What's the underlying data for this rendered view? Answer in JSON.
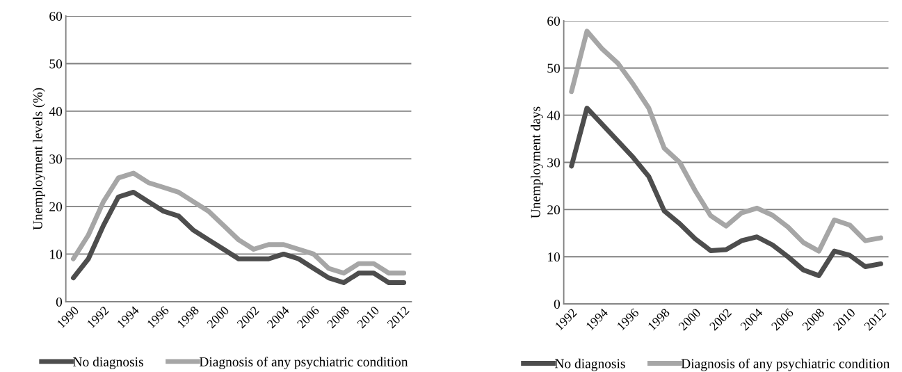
{
  "chart_data": [
    {
      "type": "line",
      "ylabel": "Unemployment levels (%)",
      "categories": [
        "1990",
        null,
        "1992",
        null,
        "1994",
        null,
        "1996",
        null,
        "1998",
        null,
        "2000",
        null,
        "2002",
        null,
        "2004",
        null,
        "2006",
        null,
        "2008",
        null,
        "2010",
        null,
        "2012"
      ],
      "series": [
        {
          "name": "No diagnosis",
          "color": "#4d4d4d",
          "values": [
            5,
            9,
            16,
            22,
            23,
            21,
            19,
            18,
            15,
            13,
            11,
            9,
            9,
            9,
            10,
            9,
            7,
            5,
            4,
            6,
            6,
            4,
            4
          ]
        },
        {
          "name": "Diagnosis of any psychiatric condition",
          "color": "#a6a6a6",
          "values": [
            9,
            14,
            21,
            26,
            27,
            25,
            24,
            23,
            21,
            19,
            16,
            13,
            11,
            12,
            12,
            11,
            10,
            7,
            6,
            8,
            8,
            6,
            6
          ]
        }
      ],
      "ylim": [
        0,
        60
      ],
      "yticks": [
        0,
        10,
        20,
        30,
        40,
        50,
        60
      ],
      "grid": "y",
      "legend": "bottom"
    },
    {
      "type": "line",
      "ylabel": "Unemployment days",
      "categories": [
        "1992",
        null,
        "1994",
        null,
        "1996",
        null,
        "1998",
        null,
        "2000",
        null,
        "2002",
        null,
        "2004",
        null,
        "2006",
        null,
        "2008",
        null,
        "2010",
        null,
        "2012"
      ],
      "series": [
        {
          "name": "No diagnosis",
          "color": "#4d4d4d",
          "values": [
            29.2,
            41.5,
            38,
            34.5,
            31,
            27,
            19.7,
            17,
            13.8,
            11.3,
            11.5,
            13.4,
            14.2,
            12.5,
            10,
            7.2,
            6,
            11.2,
            10.3,
            7.9,
            8.5
          ]
        },
        {
          "name": "Diagnosis of any psychiatric condition",
          "color": "#a6a6a6",
          "values": [
            45,
            57.8,
            54,
            51,
            46.5,
            41.5,
            33,
            30,
            24,
            18.7,
            16.5,
            19.3,
            20.3,
            18.8,
            16.3,
            13,
            11.2,
            17.8,
            16.7,
            13.4,
            14
          ]
        }
      ],
      "ylim": [
        0,
        60
      ],
      "yticks": [
        0,
        10,
        20,
        30,
        40,
        50,
        60
      ],
      "grid": "y",
      "legend": "bottom"
    }
  ]
}
